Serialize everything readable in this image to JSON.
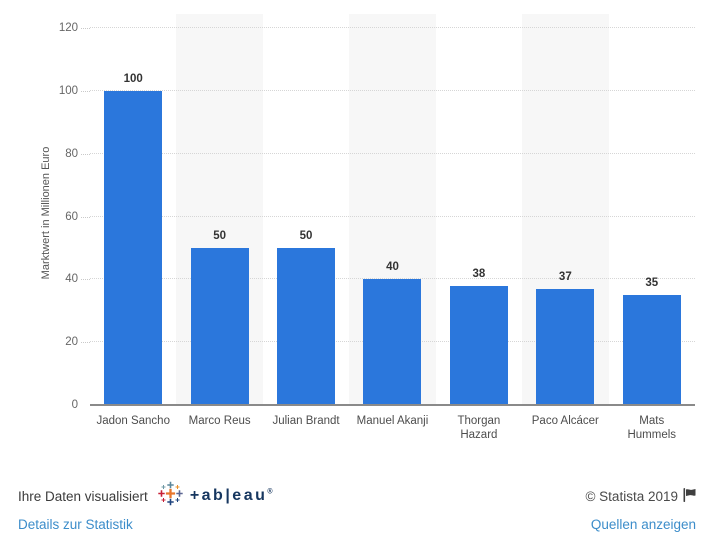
{
  "chart_data": {
    "type": "bar",
    "categories": [
      "Jadon Sancho",
      "Marco Reus",
      "Julian Brandt",
      "Manuel Akanji",
      "Thorgan Hazard",
      "Paco Alcácer",
      "Mats Hummels"
    ],
    "tick_labels": [
      "Jadon Sancho",
      "Marco Reus",
      "Julian Brandt",
      "Manuel Akanji",
      "Thorgan\nHazard",
      "Paco Alcácer",
      "Mats\nHummels"
    ],
    "values": [
      100,
      50,
      50,
      40,
      38,
      37,
      35
    ],
    "title": "",
    "xlabel": "",
    "ylabel": "Marktwert in Millionen Euro",
    "ylim": [
      0,
      120
    ],
    "yticks": [
      0,
      20,
      40,
      60,
      80,
      100,
      120
    ],
    "grid": "horizontal dotted",
    "legend": "none",
    "bar_color": "#2b77dc",
    "band_color": "#f7f7f7"
  },
  "footer": {
    "visualized_text": "Ihre Daten visualisiert",
    "tableau_wordmark": "+ab|eau",
    "tableau_reg": "®",
    "copyright": "© Statista 2019",
    "details_link": "Details zur Statistik",
    "sources_link": "Quellen anzeigen"
  }
}
